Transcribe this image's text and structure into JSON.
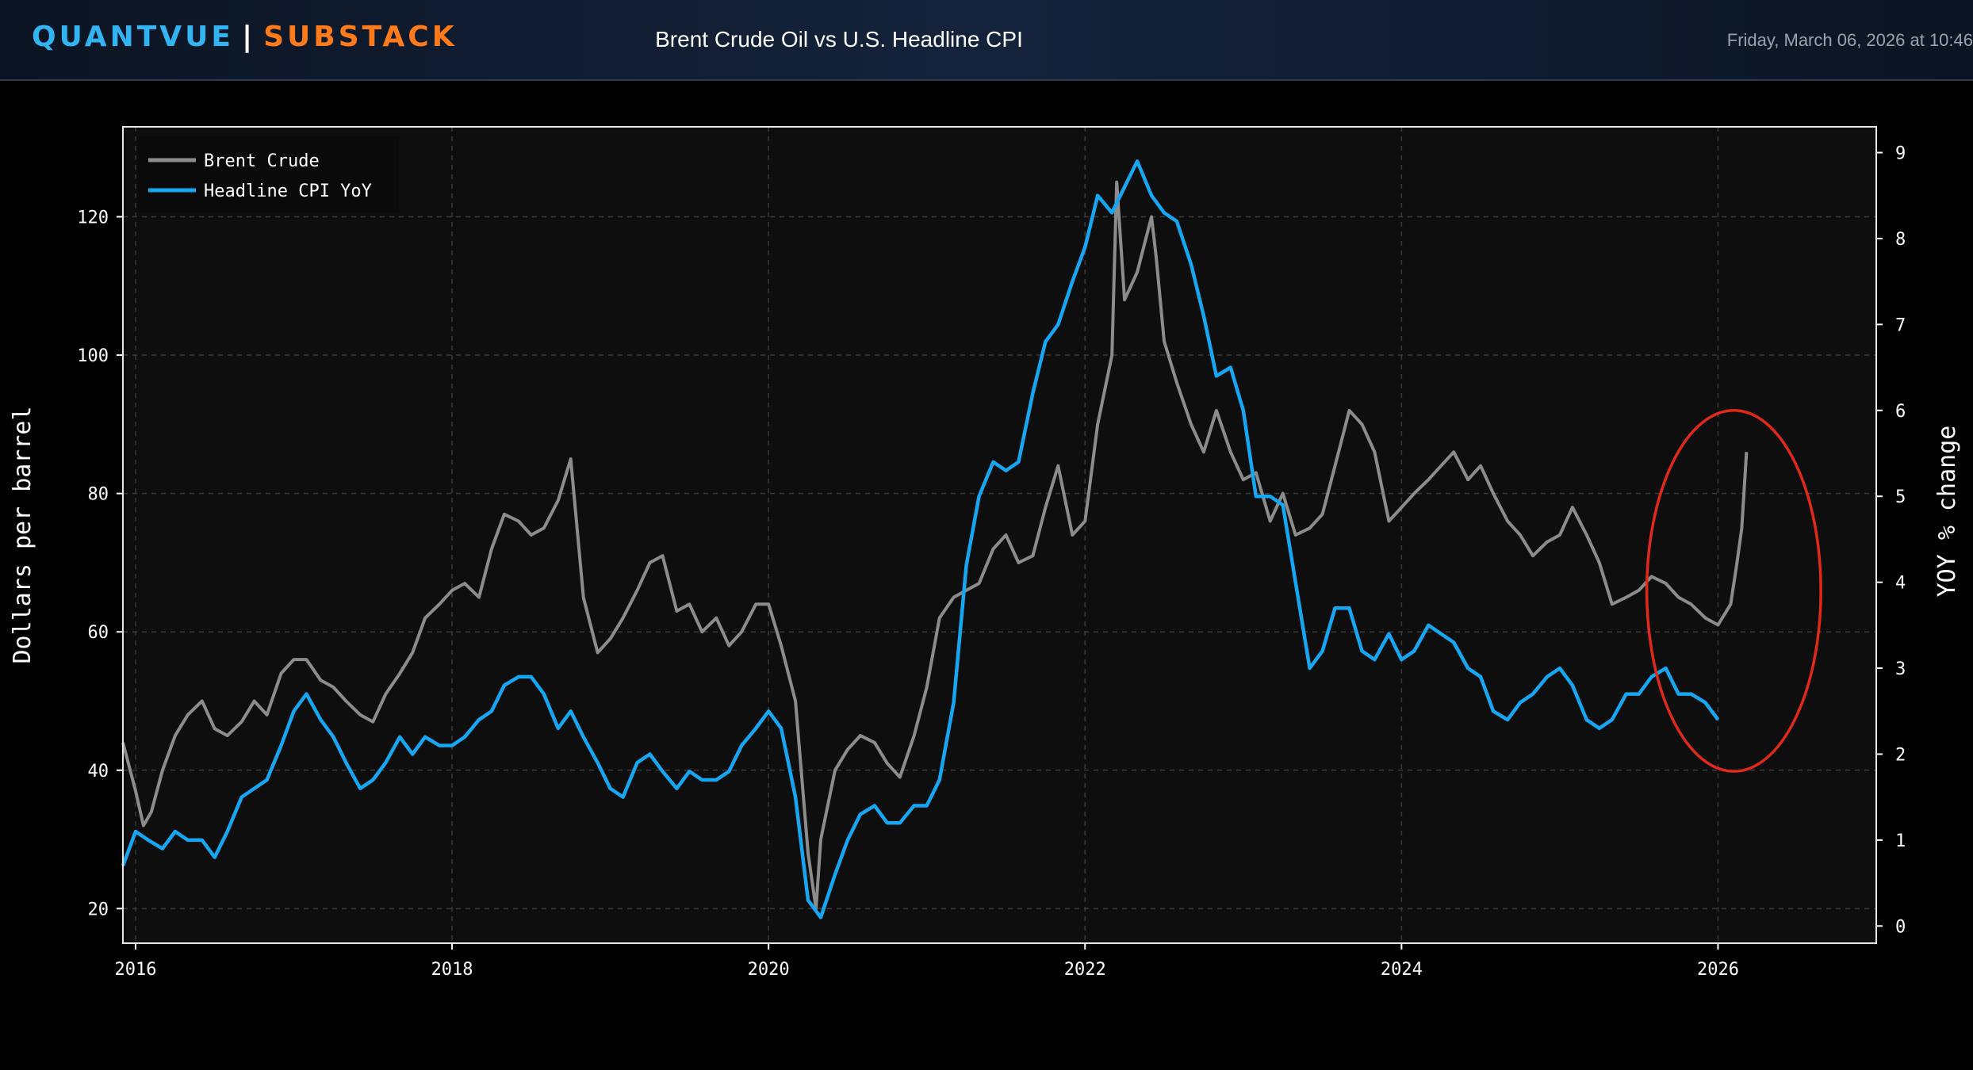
{
  "header": {
    "brand_left": "QUANTVUE",
    "brand_sep": "|",
    "brand_right": "SUBSTACK",
    "title": "Brent Crude Oil vs U.S. Headline CPI",
    "timestamp": "Friday, March 06, 2026 at 10:46"
  },
  "colors": {
    "brent": "#8c8c8c",
    "cpi": "#16a6f2",
    "highlight": "#e0291a",
    "plot_bg": "#0e0e0e"
  },
  "chart_data": {
    "type": "line",
    "title": "Brent Crude Oil vs U.S. Headline CPI",
    "xlabel": "",
    "ylabel": "Dollars per barrel",
    "y2label": "YOY % change",
    "xlim": [
      2015.92,
      2027.0
    ],
    "ylim": [
      15,
      133
    ],
    "y2lim": [
      -0.2,
      9.3
    ],
    "x_ticks": [
      2016,
      2018,
      2020,
      2022,
      2024,
      2026
    ],
    "x_tick_labels": [
      "2016",
      "2018",
      "2020",
      "2022",
      "2024",
      "2026"
    ],
    "y_ticks": [
      20,
      40,
      60,
      80,
      100,
      120
    ],
    "y_tick_labels": [
      "20",
      "40",
      "60",
      "80",
      "100",
      "120"
    ],
    "y2_ticks": [
      0,
      1,
      2,
      3,
      4,
      5,
      6,
      7,
      8,
      9
    ],
    "y2_tick_labels": [
      "0",
      "1",
      "2",
      "3",
      "4",
      "5",
      "6",
      "7",
      "8",
      "9"
    ],
    "grid": true,
    "legend_position": "top-left",
    "highlight": {
      "shape": "ellipse",
      "center_x": 2026.1,
      "center_y2": 3.9,
      "rx_years": 0.55,
      "ry_pct": 2.1
    },
    "series": [
      {
        "name": "Brent Crude",
        "axis": "left",
        "x": [
          2015.92,
          2016.0,
          2016.05,
          2016.1,
          2016.17,
          2016.25,
          2016.33,
          2016.42,
          2016.5,
          2016.58,
          2016.67,
          2016.75,
          2016.83,
          2016.92,
          2017.0,
          2017.08,
          2017.17,
          2017.25,
          2017.33,
          2017.42,
          2017.5,
          2017.58,
          2017.67,
          2017.75,
          2017.83,
          2017.92,
          2018.0,
          2018.08,
          2018.17,
          2018.25,
          2018.33,
          2018.42,
          2018.5,
          2018.58,
          2018.67,
          2018.75,
          2018.83,
          2018.92,
          2019.0,
          2019.08,
          2019.17,
          2019.25,
          2019.33,
          2019.42,
          2019.5,
          2019.58,
          2019.67,
          2019.75,
          2019.83,
          2019.92,
          2020.0,
          2020.08,
          2020.17,
          2020.25,
          2020.3,
          2020.33,
          2020.42,
          2020.5,
          2020.58,
          2020.67,
          2020.75,
          2020.83,
          2020.92,
          2021.0,
          2021.08,
          2021.17,
          2021.25,
          2021.33,
          2021.42,
          2021.5,
          2021.58,
          2021.67,
          2021.75,
          2021.83,
          2021.92,
          2022.0,
          2022.08,
          2022.17,
          2022.2,
          2022.25,
          2022.33,
          2022.42,
          2022.45,
          2022.5,
          2022.58,
          2022.67,
          2022.75,
          2022.83,
          2022.92,
          2023.0,
          2023.08,
          2023.17,
          2023.25,
          2023.33,
          2023.42,
          2023.5,
          2023.58,
          2023.67,
          2023.75,
          2023.83,
          2023.92,
          2024.0,
          2024.08,
          2024.17,
          2024.25,
          2024.33,
          2024.42,
          2024.5,
          2024.58,
          2024.67,
          2024.75,
          2024.83,
          2024.92,
          2025.0,
          2025.08,
          2025.17,
          2025.25,
          2025.33,
          2025.42,
          2025.5,
          2025.58,
          2025.67,
          2025.75,
          2025.83,
          2025.92,
          2026.0,
          2026.08,
          2026.12,
          2026.15,
          2026.18
        ],
        "values": [
          44,
          37,
          32,
          34,
          40,
          45,
          48,
          50,
          46,
          45,
          47,
          50,
          48,
          54,
          56,
          56,
          53,
          52,
          50,
          48,
          47,
          51,
          54,
          57,
          62,
          64,
          66,
          67,
          65,
          72,
          77,
          76,
          74,
          75,
          79,
          85,
          65,
          57,
          59,
          62,
          66,
          70,
          71,
          63,
          64,
          60,
          62,
          58,
          60,
          64,
          64,
          58,
          50,
          28,
          20,
          30,
          40,
          43,
          45,
          44,
          41,
          39,
          45,
          52,
          62,
          65,
          66,
          67,
          72,
          74,
          70,
          71,
          78,
          84,
          74,
          76,
          90,
          100,
          125,
          108,
          112,
          120,
          114,
          102,
          96,
          90,
          86,
          92,
          86,
          82,
          83,
          76,
          80,
          74,
          75,
          77,
          84,
          92,
          90,
          86,
          76,
          78,
          80,
          82,
          84,
          86,
          82,
          84,
          80,
          76,
          74,
          71,
          73,
          74,
          78,
          74,
          70,
          64,
          65,
          66,
          68,
          67,
          65,
          64,
          62,
          61,
          64,
          70,
          75,
          86
        ],
        "color": "#8c8c8c"
      },
      {
        "name": "Headline CPI YoY",
        "axis": "right",
        "x": [
          2015.92,
          2016.0,
          2016.08,
          2016.17,
          2016.25,
          2016.33,
          2016.42,
          2016.5,
          2016.58,
          2016.67,
          2016.75,
          2016.83,
          2016.92,
          2017.0,
          2017.08,
          2017.17,
          2017.25,
          2017.33,
          2017.42,
          2017.5,
          2017.58,
          2017.67,
          2017.75,
          2017.83,
          2017.92,
          2018.0,
          2018.08,
          2018.17,
          2018.25,
          2018.33,
          2018.42,
          2018.5,
          2018.58,
          2018.67,
          2018.75,
          2018.83,
          2018.92,
          2019.0,
          2019.08,
          2019.17,
          2019.25,
          2019.33,
          2019.42,
          2019.5,
          2019.58,
          2019.67,
          2019.75,
          2019.83,
          2019.92,
          2020.0,
          2020.08,
          2020.17,
          2020.25,
          2020.33,
          2020.42,
          2020.5,
          2020.58,
          2020.67,
          2020.75,
          2020.83,
          2020.92,
          2021.0,
          2021.08,
          2021.17,
          2021.25,
          2021.33,
          2021.42,
          2021.5,
          2021.58,
          2021.67,
          2021.75,
          2021.83,
          2021.92,
          2022.0,
          2022.08,
          2022.17,
          2022.25,
          2022.33,
          2022.42,
          2022.5,
          2022.58,
          2022.67,
          2022.75,
          2022.83,
          2022.92,
          2023.0,
          2023.08,
          2023.17,
          2023.25,
          2023.33,
          2023.42,
          2023.5,
          2023.58,
          2023.67,
          2023.75,
          2023.83,
          2023.92,
          2024.0,
          2024.08,
          2024.17,
          2024.25,
          2024.33,
          2024.42,
          2024.5,
          2024.58,
          2024.67,
          2024.75,
          2024.83,
          2024.92,
          2025.0,
          2025.08,
          2025.17,
          2025.25,
          2025.33,
          2025.42,
          2025.5,
          2025.58,
          2025.67,
          2025.75,
          2025.83,
          2025.92,
          2026.0
        ],
        "values": [
          0.7,
          1.1,
          1.0,
          0.9,
          1.1,
          1.0,
          1.0,
          0.8,
          1.1,
          1.5,
          1.6,
          1.7,
          2.1,
          2.5,
          2.7,
          2.4,
          2.2,
          1.9,
          1.6,
          1.7,
          1.9,
          2.2,
          2.0,
          2.2,
          2.1,
          2.1,
          2.2,
          2.4,
          2.5,
          2.8,
          2.9,
          2.9,
          2.7,
          2.3,
          2.5,
          2.2,
          1.9,
          1.6,
          1.5,
          1.9,
          2.0,
          1.8,
          1.6,
          1.8,
          1.7,
          1.7,
          1.8,
          2.1,
          2.3,
          2.5,
          2.3,
          1.5,
          0.3,
          0.1,
          0.6,
          1.0,
          1.3,
          1.4,
          1.2,
          1.2,
          1.4,
          1.4,
          1.7,
          2.6,
          4.2,
          5.0,
          5.4,
          5.3,
          5.4,
          6.2,
          6.8,
          7.0,
          7.5,
          7.9,
          8.5,
          8.3,
          8.6,
          8.9,
          8.5,
          8.3,
          8.2,
          7.7,
          7.1,
          6.4,
          6.5,
          6.0,
          5.0,
          5.0,
          4.9,
          4.0,
          3.0,
          3.2,
          3.7,
          3.7,
          3.2,
          3.1,
          3.4,
          3.1,
          3.2,
          3.5,
          3.4,
          3.3,
          3.0,
          2.9,
          2.5,
          2.4,
          2.6,
          2.7,
          2.9,
          3.0,
          2.8,
          2.4,
          2.3,
          2.4,
          2.7,
          2.7,
          2.9,
          3.0,
          2.7,
          2.7,
          2.6,
          2.4
        ],
        "color": "#16a6f2"
      }
    ]
  }
}
